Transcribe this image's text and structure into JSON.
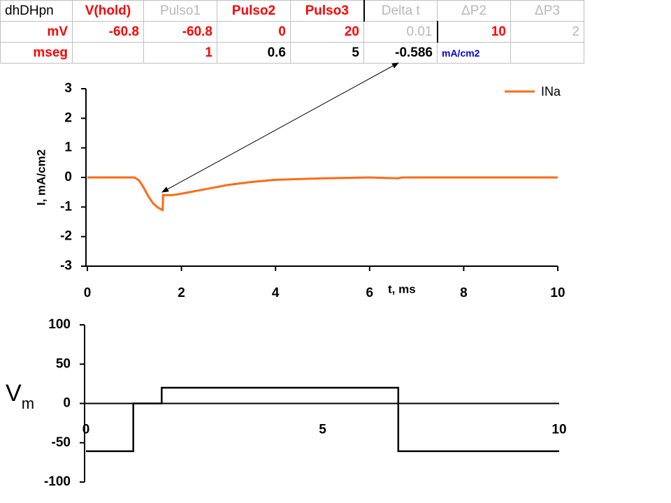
{
  "table": {
    "rows": [
      [
        "dhDHpn",
        "V(hold)",
        "Pulso1",
        "Pulso2",
        "Pulso3",
        "Delta t",
        "ΔP2",
        "ΔP3"
      ],
      [
        "mV",
        -60.8,
        -60.8,
        0,
        20,
        0.01,
        10,
        2
      ],
      [
        "mseg",
        null,
        1,
        0.6,
        5,
        -0.586,
        "mA/cm2",
        null
      ]
    ]
  },
  "chart_data": [
    {
      "type": "line",
      "ylabel": "I, mA/cm2",
      "xlabel": "t, ms",
      "x": [
        0,
        0.5,
        1.0,
        1.1,
        1.2,
        1.3,
        1.4,
        1.5,
        1.6,
        1.61,
        1.8,
        2.0,
        2.5,
        3.0,
        3.5,
        4.0,
        5.0,
        6.0,
        6.6,
        6.7,
        8.0,
        10.0
      ],
      "series": [
        {
          "name": "INa",
          "color": "#ff6a13",
          "values": [
            0,
            0,
            0,
            -0.1,
            -0.35,
            -0.65,
            -0.88,
            -1.02,
            -1.1,
            -0.6,
            -0.6,
            -0.55,
            -0.4,
            -0.25,
            -0.15,
            -0.08,
            -0.03,
            0,
            -0.03,
            0,
            0,
            0
          ]
        }
      ],
      "xlim": [
        0,
        10
      ],
      "xticks": [
        0,
        2,
        4,
        6,
        8,
        10
      ],
      "ylim": [
        -3,
        3
      ],
      "yticks": [
        -3,
        -2,
        -1,
        0,
        1,
        2,
        3
      ],
      "legend": "top-right"
    },
    {
      "type": "line",
      "ylabel": "V",
      "ylabel_subscript": "m",
      "x": [
        0,
        1,
        1,
        1.6,
        1.6,
        6.6,
        6.6,
        10
      ],
      "series": [
        {
          "color": "#000000",
          "values": [
            -60.8,
            -60.8,
            0,
            0,
            20,
            20,
            -60.8,
            -60.8
          ]
        }
      ],
      "xlim": [
        0,
        10
      ],
      "xticks": [
        0,
        5,
        10
      ],
      "ylim": [
        -100,
        100
      ],
      "yticks": [
        -100,
        -50,
        0,
        50,
        100
      ]
    }
  ]
}
